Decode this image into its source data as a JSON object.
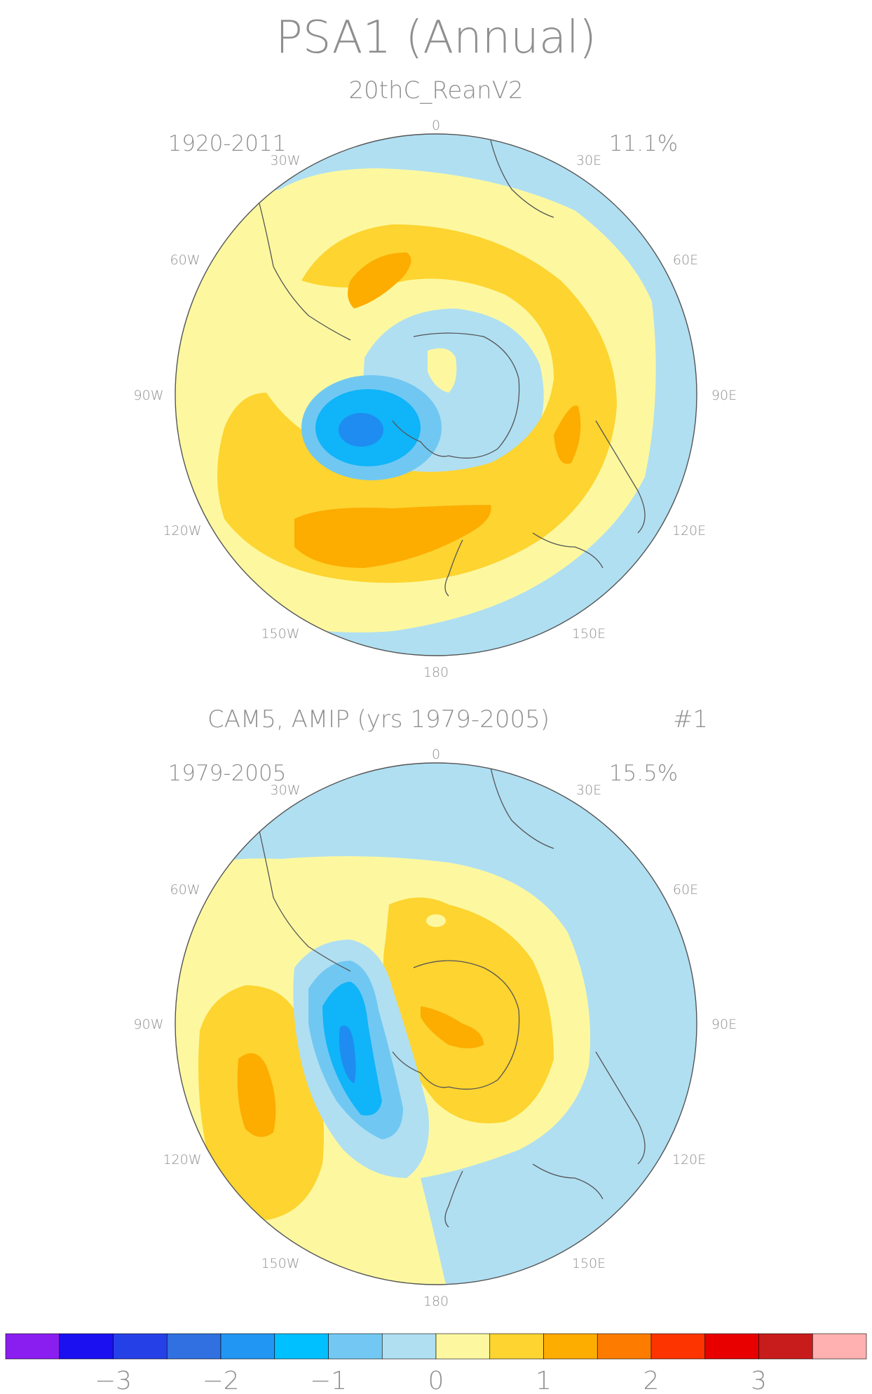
{
  "title": "PSA1 (Annual)",
  "panels": [
    {
      "subtitle": "20thC_ReanV2",
      "period": "1920-2011",
      "variance": "11.1%",
      "run_label": ""
    },
    {
      "subtitle": "CAM5, AMIP (yrs 1979-2005)",
      "period": "1979-2005",
      "variance": "15.5%",
      "run_label": "#1"
    }
  ],
  "longitude_labels": {
    "lon_0": "0",
    "lon_30e": "30E",
    "lon_60e": "60E",
    "lon_90e": "90E",
    "lon_120e": "120E",
    "lon_150e": "150E",
    "lon_180": "180",
    "lon_150w": "150W",
    "lon_120w": "120W",
    "lon_90w": "90W",
    "lon_60w": "60W",
    "lon_30w": "30W"
  },
  "colorbar": {
    "colors": [
      "#8a1ef0",
      "#1a10f0",
      "#2640e8",
      "#3070e0",
      "#2196f3",
      "#00c0ff",
      "#72c8f2",
      "#b0dff2",
      "#fdf8a0",
      "#fdd430",
      "#fdac00",
      "#fd7c00",
      "#fd3400",
      "#e80000",
      "#c81c1c",
      "#ffb0b0"
    ],
    "labels": [
      "−3",
      "−2",
      "−1",
      "0",
      "1",
      "2",
      "3"
    ]
  },
  "palette": {
    "c_m2": "#1e8cf0",
    "c_m15": "#10b4f8",
    "c_m1": "#70c8f2",
    "c_m05": "#b0dff2",
    "c_0": "#fdf8a0",
    "c_05": "#fdd430",
    "c_1": "#fdac00",
    "c_coast": "#555555",
    "c_rim": "#555555"
  }
}
